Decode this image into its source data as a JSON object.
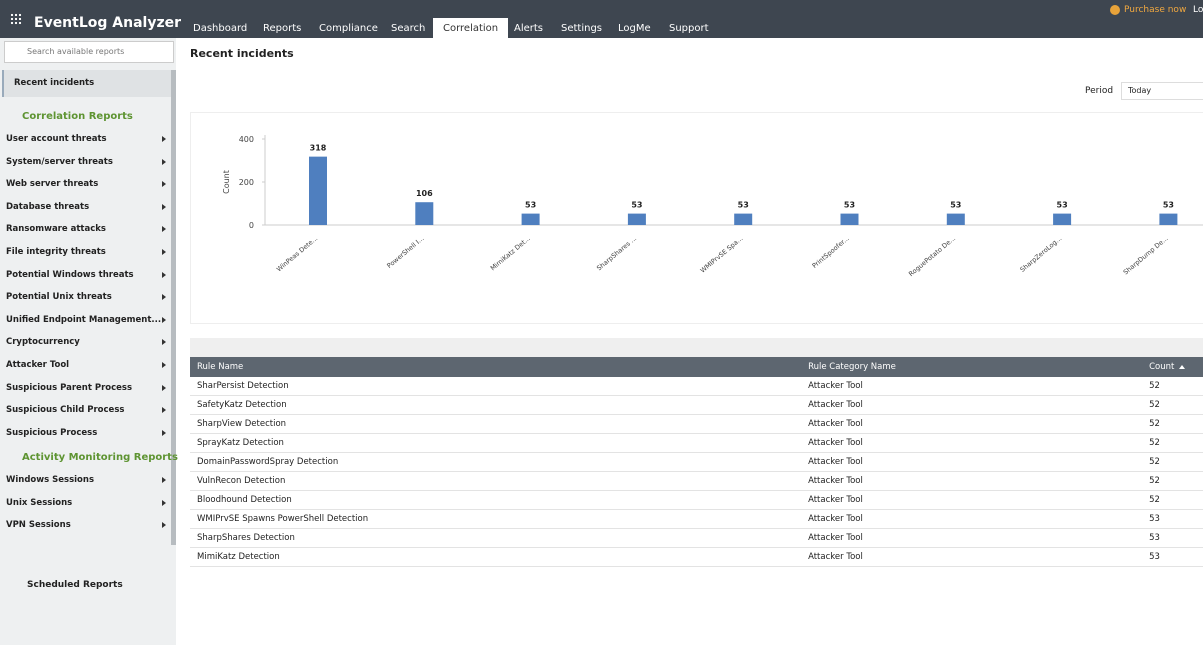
{
  "header": {
    "logo": "EventLog Analyzer",
    "tabs": [
      "Dashboard",
      "Reports",
      "Compliance",
      "Search",
      "Correlation",
      "Alerts",
      "Settings",
      "LogMe",
      "Support"
    ],
    "active_tab": 4,
    "purchase": "Purchase now",
    "logout": "Lo"
  },
  "sidebar": {
    "search_placeholder": "Search available reports",
    "selected": "Recent incidents",
    "sections": [
      {
        "title": "Correlation Reports",
        "items": [
          "User account threats",
          "System/server threats",
          "Web server threats",
          "Database threats",
          "Ransomware attacks",
          "File integrity threats",
          "Potential Windows threats",
          "Potential Unix threats",
          "Unified Endpoint Management...",
          "Cryptocurrency",
          "Attacker Tool",
          "Suspicious Parent Process",
          "Suspicious Child Process",
          "Suspicious Process"
        ]
      },
      {
        "title": "Activity Monitoring Reports",
        "items": [
          "Windows Sessions",
          "Unix Sessions",
          "VPN Sessions"
        ]
      }
    ],
    "scheduled": "Scheduled Reports"
  },
  "content": {
    "title": "Recent incidents",
    "period_label": "Period",
    "period_value": "Today"
  },
  "chart_data": {
    "type": "bar",
    "y_label": "Count",
    "color": "#4f7fbf",
    "categories": [
      "WinPeas Dete...",
      "PowerShell I...",
      "MimiKatz Det...",
      "SharpShares ...",
      "WMIPrvSE Spa...",
      "PrintSpoofer...",
      "RoguePotato De...",
      "SharpZeroLog...",
      "SharpDump De..."
    ],
    "values": [
      318,
      106,
      53,
      53,
      53,
      53,
      53,
      53,
      53
    ],
    "ylim": [
      0,
      400
    ],
    "yticks": [
      0,
      200,
      400
    ]
  },
  "table": {
    "columns": [
      "Rule Name",
      "Rule Category Name",
      "Count"
    ],
    "rows": [
      [
        "SharPersist Detection",
        "Attacker Tool",
        52
      ],
      [
        "SafetyKatz Detection",
        "Attacker Tool",
        52
      ],
      [
        "SharpView Detection",
        "Attacker Tool",
        52
      ],
      [
        "SprayKatz Detection",
        "Attacker Tool",
        52
      ],
      [
        "DomainPasswordSpray Detection",
        "Attacker Tool",
        52
      ],
      [
        "VulnRecon Detection",
        "Attacker Tool",
        52
      ],
      [
        "Bloodhound Detection",
        "Attacker Tool",
        52
      ],
      [
        "WMIPrvSE Spawns PowerShell Detection",
        "Attacker Tool",
        53
      ],
      [
        "SharpShares Detection",
        "Attacker Tool",
        53
      ],
      [
        "MimiKatz Detection",
        "Attacker Tool",
        53
      ]
    ]
  }
}
